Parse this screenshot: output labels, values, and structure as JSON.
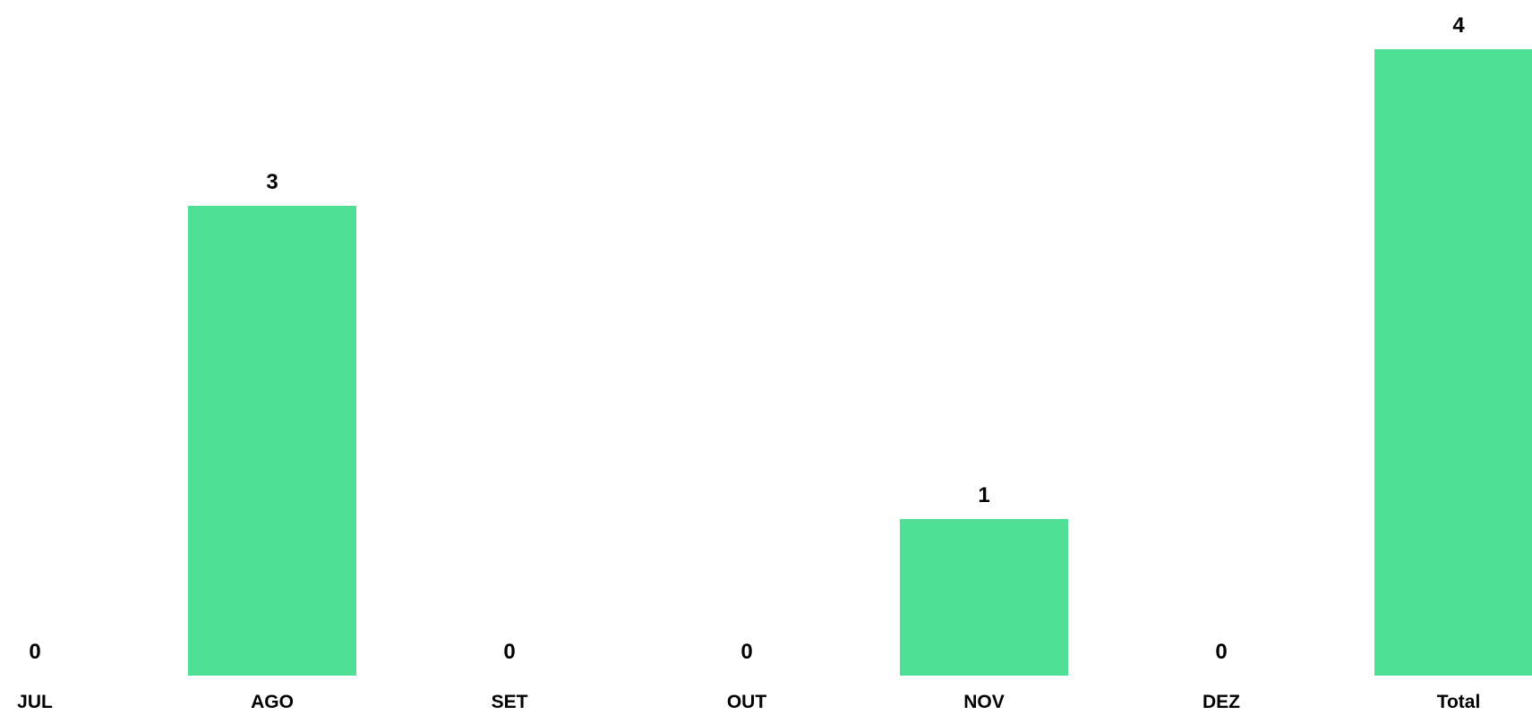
{
  "chart_data": {
    "type": "bar",
    "categories": [
      "JUL",
      "AGO",
      "SET",
      "OUT",
      "NOV",
      "DEZ",
      "Total"
    ],
    "values": [
      0,
      3,
      0,
      0,
      1,
      0,
      4
    ],
    "data_labels": [
      "0",
      "3",
      "0",
      "0",
      "1",
      "0",
      "4"
    ],
    "title": "",
    "xlabel": "",
    "ylabel": "",
    "ylim": [
      0,
      4
    ],
    "grid": false,
    "legend": "none",
    "bar_color": "#4fdf95",
    "label_color": "#000000",
    "background": "#ffffff"
  }
}
